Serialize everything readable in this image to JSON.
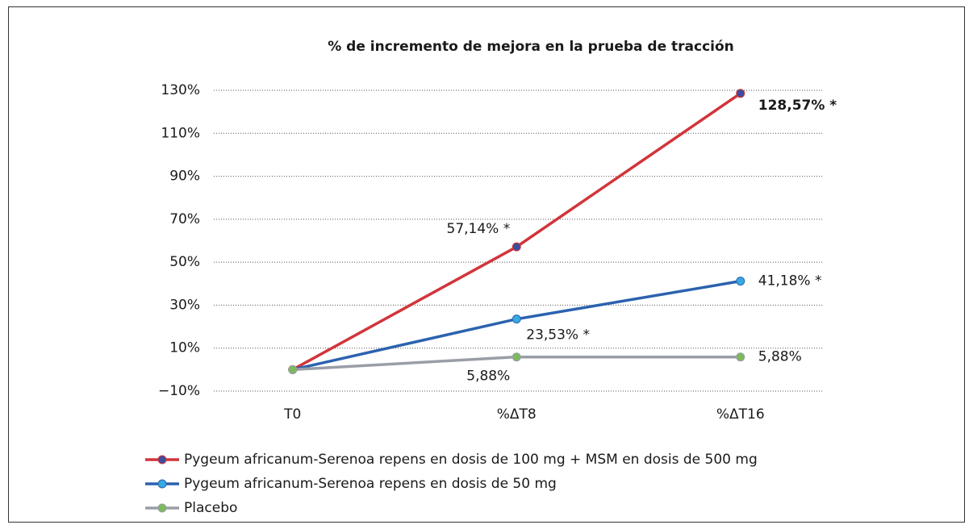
{
  "chart_data": {
    "type": "line",
    "title": "% de incremento de mejora en la prueba de tracción",
    "categories": [
      "T0",
      "%ΔT8",
      "%ΔT16"
    ],
    "series": [
      {
        "name": "Pygeum africanum-Serenoa repens en dosis de 100 mg + MSM en dosis de 500 mg",
        "color": "#d2343b",
        "marker_color": "#3d4d9e",
        "values": [
          0,
          57.14,
          128.57
        ],
        "value_labels": [
          null,
          "57,14% *",
          "128,57% *"
        ]
      },
      {
        "name": "Pygeum africanum-Serenoa repens en dosis de 50 mg",
        "color": "#2b62ae",
        "marker_color": "#36aae2",
        "values": [
          0,
          23.53,
          41.18
        ],
        "value_labels": [
          null,
          "23,53% *",
          "41,18% *"
        ]
      },
      {
        "name": "Placebo",
        "color": "#9a9ea6",
        "marker_color": "#7dba5b",
        "values": [
          0,
          5.88,
          5.88
        ],
        "value_labels": [
          null,
          "5,88%",
          "5,88%"
        ]
      }
    ],
    "ylim": [
      -10,
      130
    ],
    "yticks": [
      {
        "value": -10,
        "label": "−10%"
      },
      {
        "value": 10,
        "label": "10%"
      },
      {
        "value": 30,
        "label": "30%"
      },
      {
        "value": 50,
        "label": "50%"
      },
      {
        "value": 70,
        "label": "70%"
      },
      {
        "value": 90,
        "label": "90%"
      },
      {
        "value": 110,
        "label": "110%"
      },
      {
        "value": 130,
        "label": "130%"
      }
    ],
    "grid": true,
    "legend": "bottom"
  }
}
